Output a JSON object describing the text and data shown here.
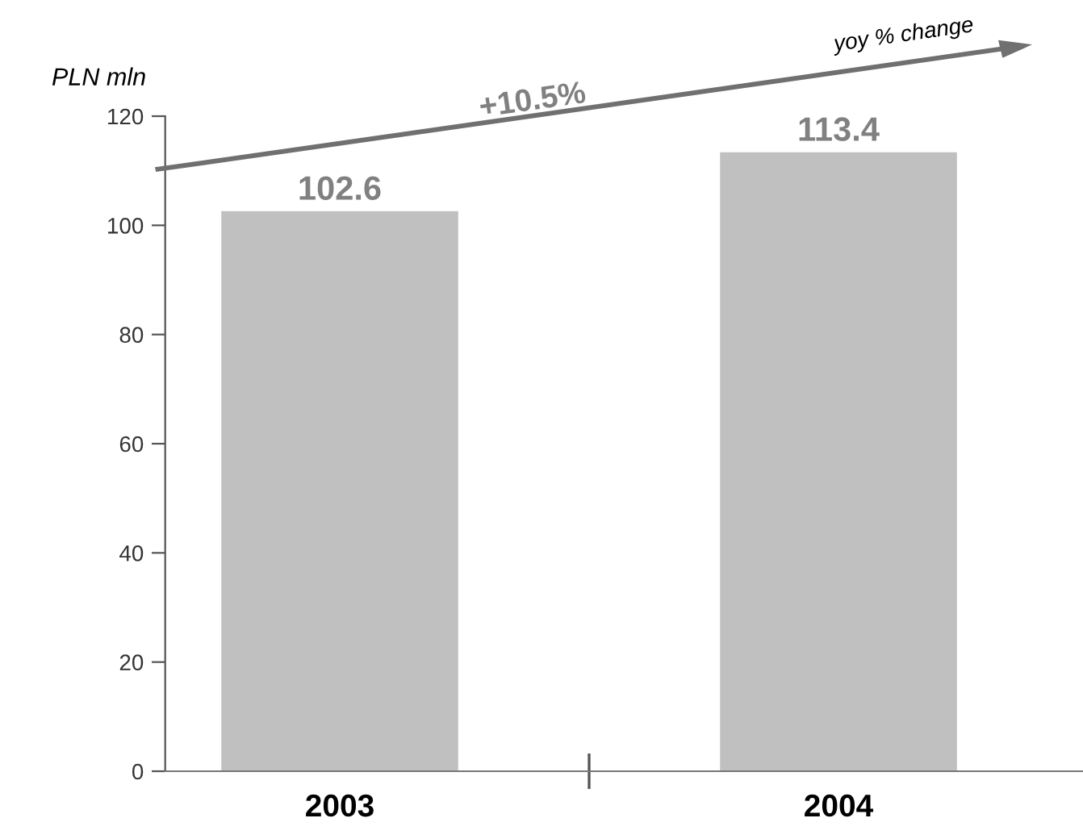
{
  "chart_data": {
    "type": "bar",
    "ylabel": "PLN mln",
    "categories": [
      "2003",
      "2004"
    ],
    "values": [
      102.6,
      113.4
    ],
    "color": "#c0c0c0",
    "data_labels": true,
    "ylim": [
      0,
      120
    ],
    "yticks": [
      0,
      20,
      40,
      60,
      80,
      100,
      120
    ],
    "grid": false,
    "legend": false,
    "annotations": [
      "+10.5%",
      "yoy % change"
    ]
  }
}
